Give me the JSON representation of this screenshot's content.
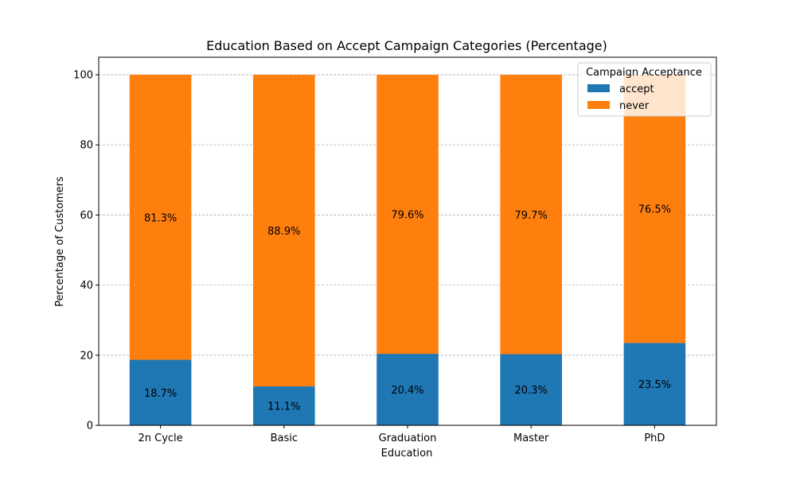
{
  "chart_data": {
    "type": "bar",
    "stacked": true,
    "title": "Education Based on Accept Campaign Categories (Percentage)",
    "xlabel": "Education",
    "ylabel": "Percentage of Customers",
    "categories": [
      "2n Cycle",
      "Basic",
      "Graduation",
      "Master",
      "PhD"
    ],
    "series": [
      {
        "name": "accept",
        "values": [
          18.7,
          11.1,
          20.4,
          20.3,
          23.5
        ],
        "labels": [
          "18.7%",
          "11.1%",
          "20.4%",
          "20.3%",
          "23.5%"
        ],
        "color": "#1f77b4"
      },
      {
        "name": "never",
        "values": [
          81.3,
          88.9,
          79.6,
          79.7,
          76.5
        ],
        "labels": [
          "81.3%",
          "88.9%",
          "79.6%",
          "79.7%",
          "76.5%"
        ],
        "color": "#ff7f0e"
      }
    ],
    "ylim": [
      0,
      105
    ],
    "yticks": [
      0,
      20,
      40,
      60,
      80,
      100
    ],
    "grid": "y-dashed",
    "legend": {
      "title": "Campaign Acceptance",
      "placement": "top-right"
    }
  }
}
